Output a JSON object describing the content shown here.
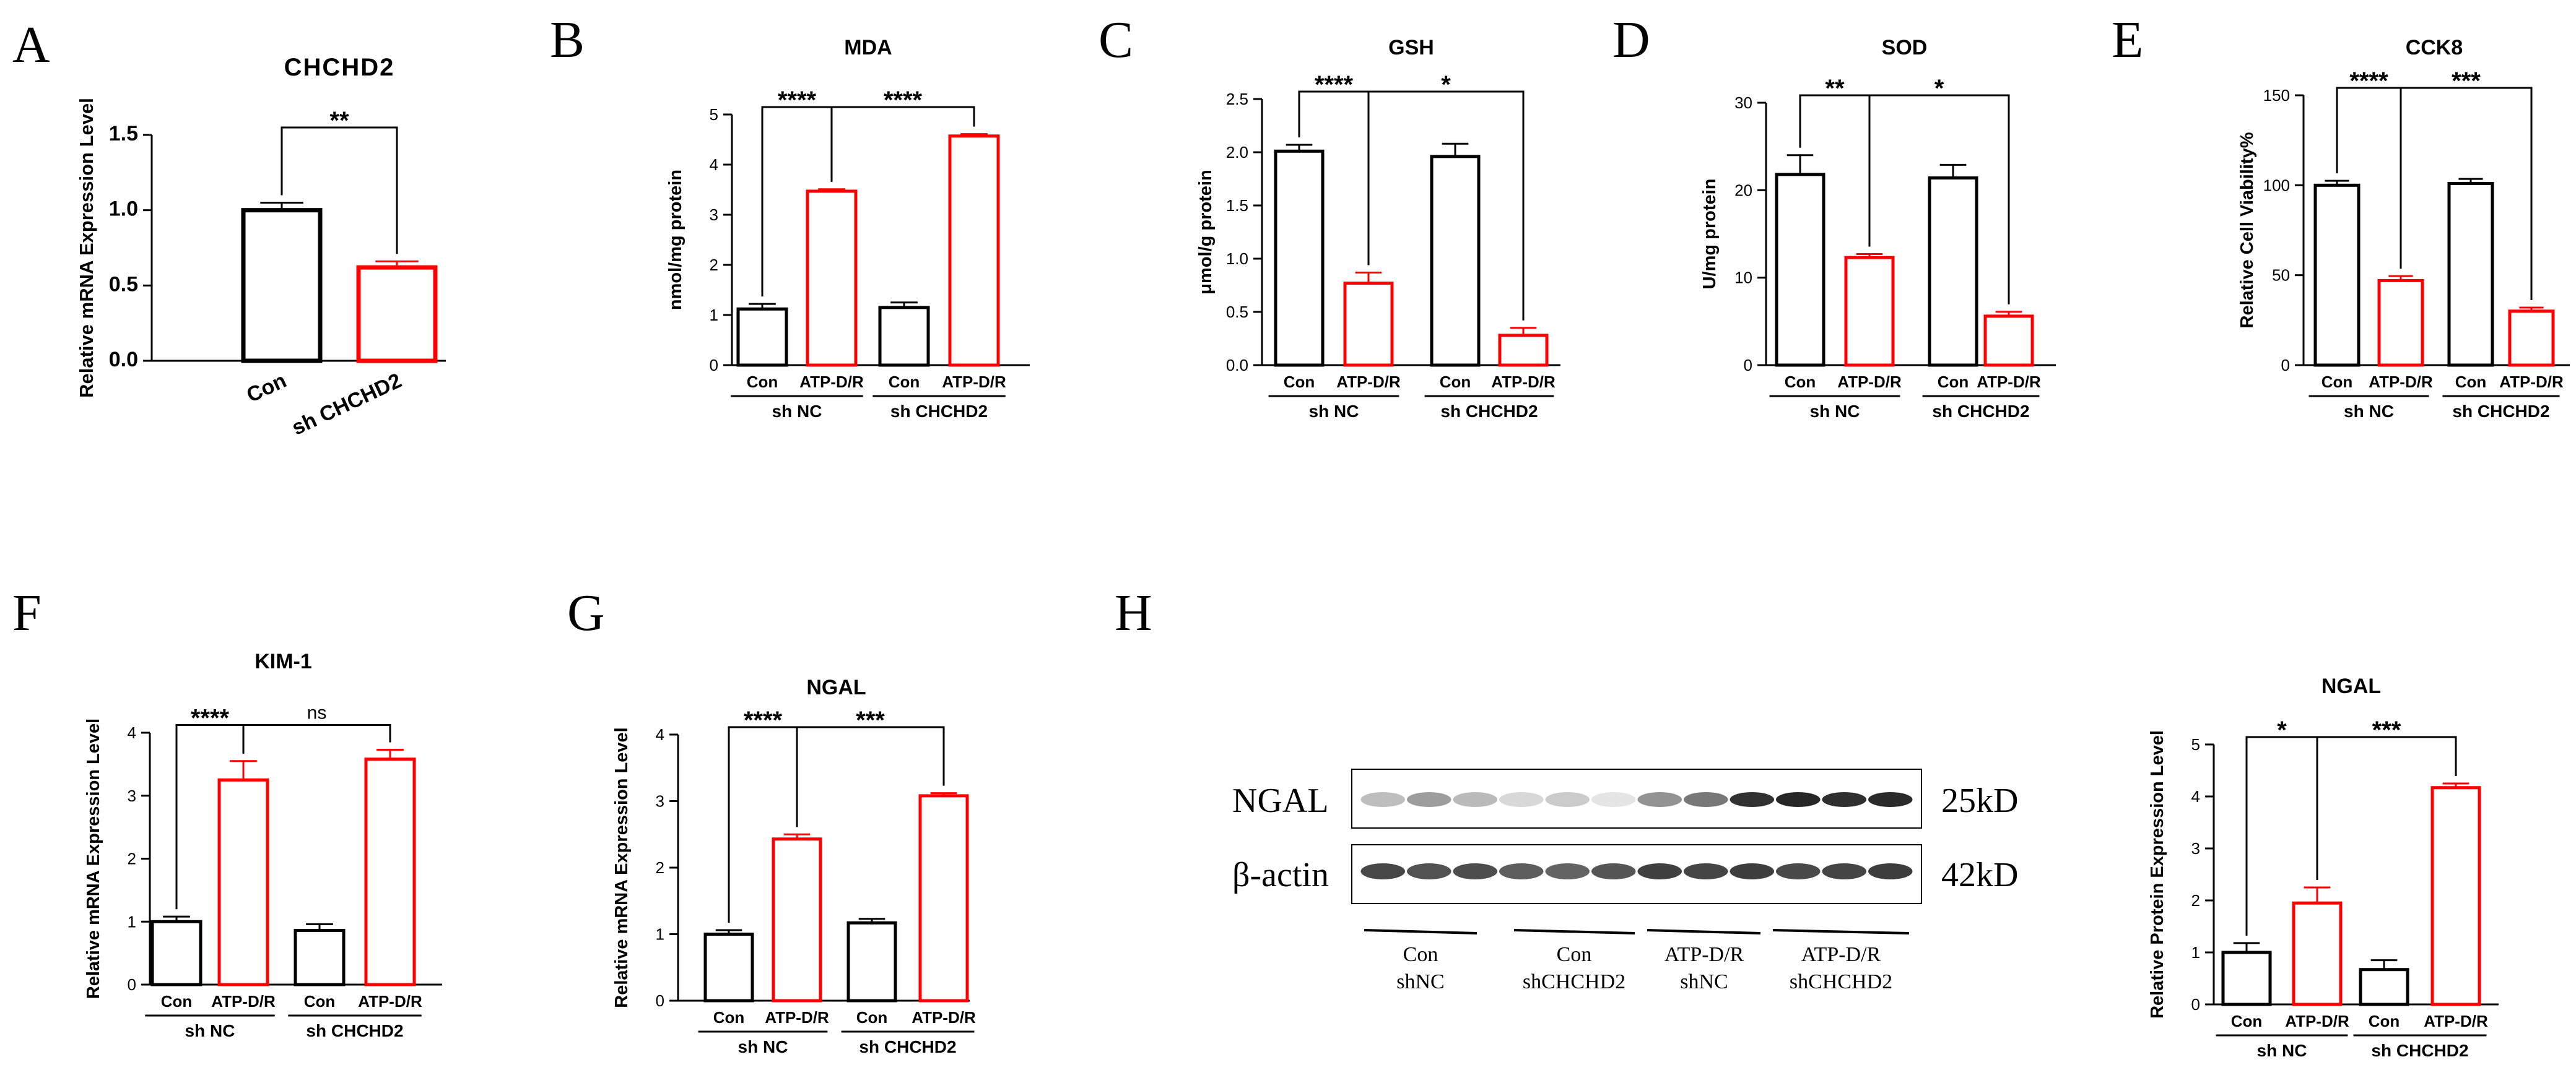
{
  "chart_data": [
    {
      "id": "A",
      "type": "bar",
      "title": "CHCHD2",
      "ylabel": "Relative mRNA Expression Level",
      "ylim": [
        0,
        1.5
      ],
      "yticks": [
        "0.0",
        "0.5",
        "1.0",
        "1.5"
      ],
      "categories": [
        "Con",
        "sh CHCHD2"
      ],
      "values": [
        1.0,
        0.62
      ],
      "errors": [
        0.05,
        0.04
      ],
      "colors": [
        "#000000",
        "#ff0000"
      ],
      "significance": [
        {
          "from": 0,
          "to": 1,
          "label": "**"
        }
      ]
    },
    {
      "id": "B",
      "type": "bar",
      "title": "MDA",
      "ylabel": "nmol/mg protein",
      "ylim": [
        0,
        5
      ],
      "yticks": [
        "0",
        "1",
        "2",
        "3",
        "4",
        "5"
      ],
      "categories": [
        "Con",
        "ATP-D/R",
        "Con",
        "ATP-D/R"
      ],
      "groups": [
        "sh NC",
        "sh CHCHD2"
      ],
      "values": [
        1.12,
        3.47,
        1.15,
        4.57
      ],
      "errors": [
        0.1,
        0.04,
        0.1,
        0.04
      ],
      "colors": [
        "#000000",
        "#ff0000",
        "#000000",
        "#ff0000"
      ],
      "significance": [
        {
          "from": 0,
          "to": 1,
          "label": "****"
        },
        {
          "from": 1,
          "to": 3,
          "label": "****"
        }
      ]
    },
    {
      "id": "C",
      "type": "bar",
      "title": "GSH",
      "ylabel": "μmol/g protein",
      "ylim": [
        0,
        2.5
      ],
      "yticks": [
        "0.0",
        "0.5",
        "1.0",
        "1.5",
        "2.0",
        "2.5"
      ],
      "categories": [
        "Con",
        "ATP-D/R",
        "Con",
        "ATP-D/R"
      ],
      "groups": [
        "sh NC",
        "sh CHCHD2"
      ],
      "values": [
        2.01,
        0.77,
        1.96,
        0.28
      ],
      "errors": [
        0.06,
        0.1,
        0.12,
        0.07
      ],
      "colors": [
        "#000000",
        "#ff0000",
        "#000000",
        "#ff0000"
      ],
      "significance": [
        {
          "from": 0,
          "to": 1,
          "label": "****"
        },
        {
          "from": 1,
          "to": 3,
          "label": "*"
        }
      ]
    },
    {
      "id": "D",
      "type": "bar",
      "title": "SOD",
      "ylabel": "U/mg protein",
      "ylim": [
        0,
        30
      ],
      "yticks": [
        "0",
        "10",
        "20",
        "30"
      ],
      "categories": [
        "Con",
        "ATP-D/R",
        "Con",
        "ATP-D/R"
      ],
      "groups": [
        "sh NC",
        "sh CHCHD2"
      ],
      "values": [
        21.8,
        12.3,
        21.4,
        5.6
      ],
      "errors": [
        2.2,
        0.4,
        1.5,
        0.5
      ],
      "colors": [
        "#000000",
        "#ff0000",
        "#000000",
        "#ff0000"
      ],
      "significance": [
        {
          "from": 0,
          "to": 1,
          "label": "**"
        },
        {
          "from": 1,
          "to": 3,
          "label": "*"
        }
      ]
    },
    {
      "id": "E",
      "type": "bar",
      "title": "CCK8",
      "ylabel": "Relative Cell Viability%",
      "ylim": [
        0,
        150
      ],
      "yticks": [
        "0",
        "50",
        "100",
        "150"
      ],
      "categories": [
        "Con",
        "ATP-D/R",
        "Con",
        "ATP-D/R"
      ],
      "groups": [
        "sh NC",
        "sh CHCHD2"
      ],
      "values": [
        100,
        47,
        101,
        30
      ],
      "errors": [
        2.5,
        2.5,
        2.5,
        2.0
      ],
      "colors": [
        "#000000",
        "#ff0000",
        "#000000",
        "#ff0000"
      ],
      "significance": [
        {
          "from": 0,
          "to": 1,
          "label": "****"
        },
        {
          "from": 1,
          "to": 3,
          "label": "***"
        }
      ]
    },
    {
      "id": "F",
      "type": "bar",
      "title": "KIM-1",
      "ylabel": "Relative mRNA Expression Level",
      "ylim": [
        0,
        4
      ],
      "yticks": [
        "0",
        "1",
        "2",
        "3",
        "4"
      ],
      "categories": [
        "Con",
        "ATP-D/R",
        "Con",
        "ATP-D/R"
      ],
      "groups": [
        "sh NC",
        "sh CHCHD2"
      ],
      "values": [
        1.0,
        3.25,
        0.86,
        3.58
      ],
      "errors": [
        0.08,
        0.3,
        0.1,
        0.15
      ],
      "colors": [
        "#000000",
        "#ff0000",
        "#000000",
        "#ff0000"
      ],
      "significance": [
        {
          "from": 0,
          "to": 1,
          "label": "****"
        },
        {
          "from": 1,
          "to": 3,
          "label": "ns"
        }
      ]
    },
    {
      "id": "G",
      "type": "bar",
      "title": "NGAL",
      "ylabel": "Relative mRNA Expression Level",
      "ylim": [
        0,
        4
      ],
      "yticks": [
        "0",
        "1",
        "2",
        "3",
        "4"
      ],
      "categories": [
        "Con",
        "ATP-D/R",
        "Con",
        "ATP-D/R"
      ],
      "groups": [
        "sh NC",
        "sh CHCHD2"
      ],
      "values": [
        1.0,
        2.43,
        1.17,
        3.08
      ],
      "errors": [
        0.06,
        0.07,
        0.06,
        0.04
      ],
      "colors": [
        "#000000",
        "#ff0000",
        "#000000",
        "#ff0000"
      ],
      "significance": [
        {
          "from": 0,
          "to": 1,
          "label": "****"
        },
        {
          "from": 1,
          "to": 3,
          "label": "***"
        }
      ]
    },
    {
      "id": "H",
      "type": "bar",
      "title": "NGAL",
      "ylabel": "Relative  Protein Expression Level",
      "ylim": [
        0,
        5
      ],
      "yticks": [
        "0",
        "1",
        "2",
        "3",
        "4",
        "5"
      ],
      "categories": [
        "Con",
        "ATP-D/R",
        "Con",
        "ATP-D/R"
      ],
      "groups": [
        "sh NC",
        "sh CHCHD2"
      ],
      "values": [
        1.0,
        1.95,
        0.67,
        4.17
      ],
      "errors": [
        0.18,
        0.3,
        0.18,
        0.08
      ],
      "colors": [
        "#000000",
        "#ff0000",
        "#000000",
        "#ff0000"
      ],
      "significance": [
        {
          "from": 0,
          "to": 1,
          "label": "*"
        },
        {
          "from": 1,
          "to": 3,
          "label": "***"
        }
      ]
    }
  ],
  "western_blot": {
    "rows": [
      {
        "label": "NGAL",
        "size": "25kD"
      },
      {
        "label": "β-actin",
        "size": "42kD"
      }
    ],
    "lanes": [
      {
        "line1": "Con",
        "line2": "shNC"
      },
      {
        "line1": "Con",
        "line2": "shCHCHD2"
      },
      {
        "line1": "ATP-D/R",
        "line2": "shNC"
      },
      {
        "line1": "ATP-D/R",
        "line2": "shCHCHD2"
      }
    ],
    "ngal_intensity": [
      0.3,
      0.45,
      0.32,
      0.18,
      0.24,
      0.12,
      0.5,
      0.62,
      0.95,
      1.0,
      0.96,
      0.98
    ],
    "actin_intensity": [
      0.85,
      0.8,
      0.82,
      0.75,
      0.72,
      0.78,
      0.88,
      0.86,
      0.9,
      0.84,
      0.86,
      0.9
    ]
  },
  "panel_letters": [
    "A",
    "B",
    "C",
    "D",
    "E",
    "F",
    "G",
    "H"
  ]
}
